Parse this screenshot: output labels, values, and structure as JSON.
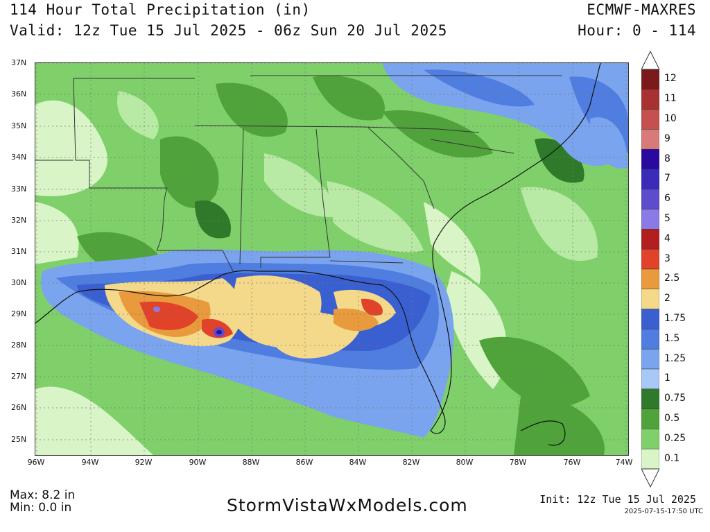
{
  "header": {
    "title": "114 Hour Total Precipitation (in)",
    "valid": "Valid: 12z Tue 15 Jul 2025 - 06z Sun 20 Jul 2025",
    "model": "ECMWF-MAXRES",
    "hour": "Hour: 0 - 114"
  },
  "map": {
    "lat_labels": [
      "37N",
      "36N",
      "35N",
      "34N",
      "33N",
      "32N",
      "31N",
      "30N",
      "29N",
      "28N",
      "27N",
      "26N",
      "25N"
    ],
    "lon_labels": [
      "96W",
      "94W",
      "92W",
      "90W",
      "88W",
      "86W",
      "84W",
      "82W",
      "80W",
      "78W",
      "76W",
      "74W"
    ]
  },
  "colorbar": {
    "levels": [
      {
        "label": "12",
        "color": "#7a1a1a"
      },
      {
        "label": "11",
        "color": "#a83232"
      },
      {
        "label": "10",
        "color": "#c45050"
      },
      {
        "label": "9",
        "color": "#d97a7a"
      },
      {
        "label": "8",
        "color": "#2a0a9e"
      },
      {
        "label": "7",
        "color": "#3a2bb8"
      },
      {
        "label": "6",
        "color": "#5d4ccc"
      },
      {
        "label": "5",
        "color": "#8a7ae6"
      },
      {
        "label": "4",
        "color": "#b31f1f"
      },
      {
        "label": "3",
        "color": "#e0432a"
      },
      {
        "label": "2.5",
        "color": "#e89a3c"
      },
      {
        "label": "2",
        "color": "#f5d98a"
      },
      {
        "label": "1.75",
        "color": "#3a5fd1"
      },
      {
        "label": "1.5",
        "color": "#4f7de0"
      },
      {
        "label": "1.25",
        "color": "#7aa4ee"
      },
      {
        "label": "1",
        "color": "#a8c8f5"
      },
      {
        "label": "0.75",
        "color": "#2f7a2a"
      },
      {
        "label": "0.5",
        "color": "#4fa33a"
      },
      {
        "label": "0.25",
        "color": "#7fd06a"
      },
      {
        "label": "0.1",
        "color": "#d9f5c8"
      }
    ]
  },
  "footer": {
    "max": "Max: 8.2 in",
    "min": "Min: 0.0 in",
    "site": "StormVistaWxModels.com",
    "init": "Init: 12z Tue 15 Jul 2025",
    "stamp": "2025-07-15-17:50 UTC"
  }
}
